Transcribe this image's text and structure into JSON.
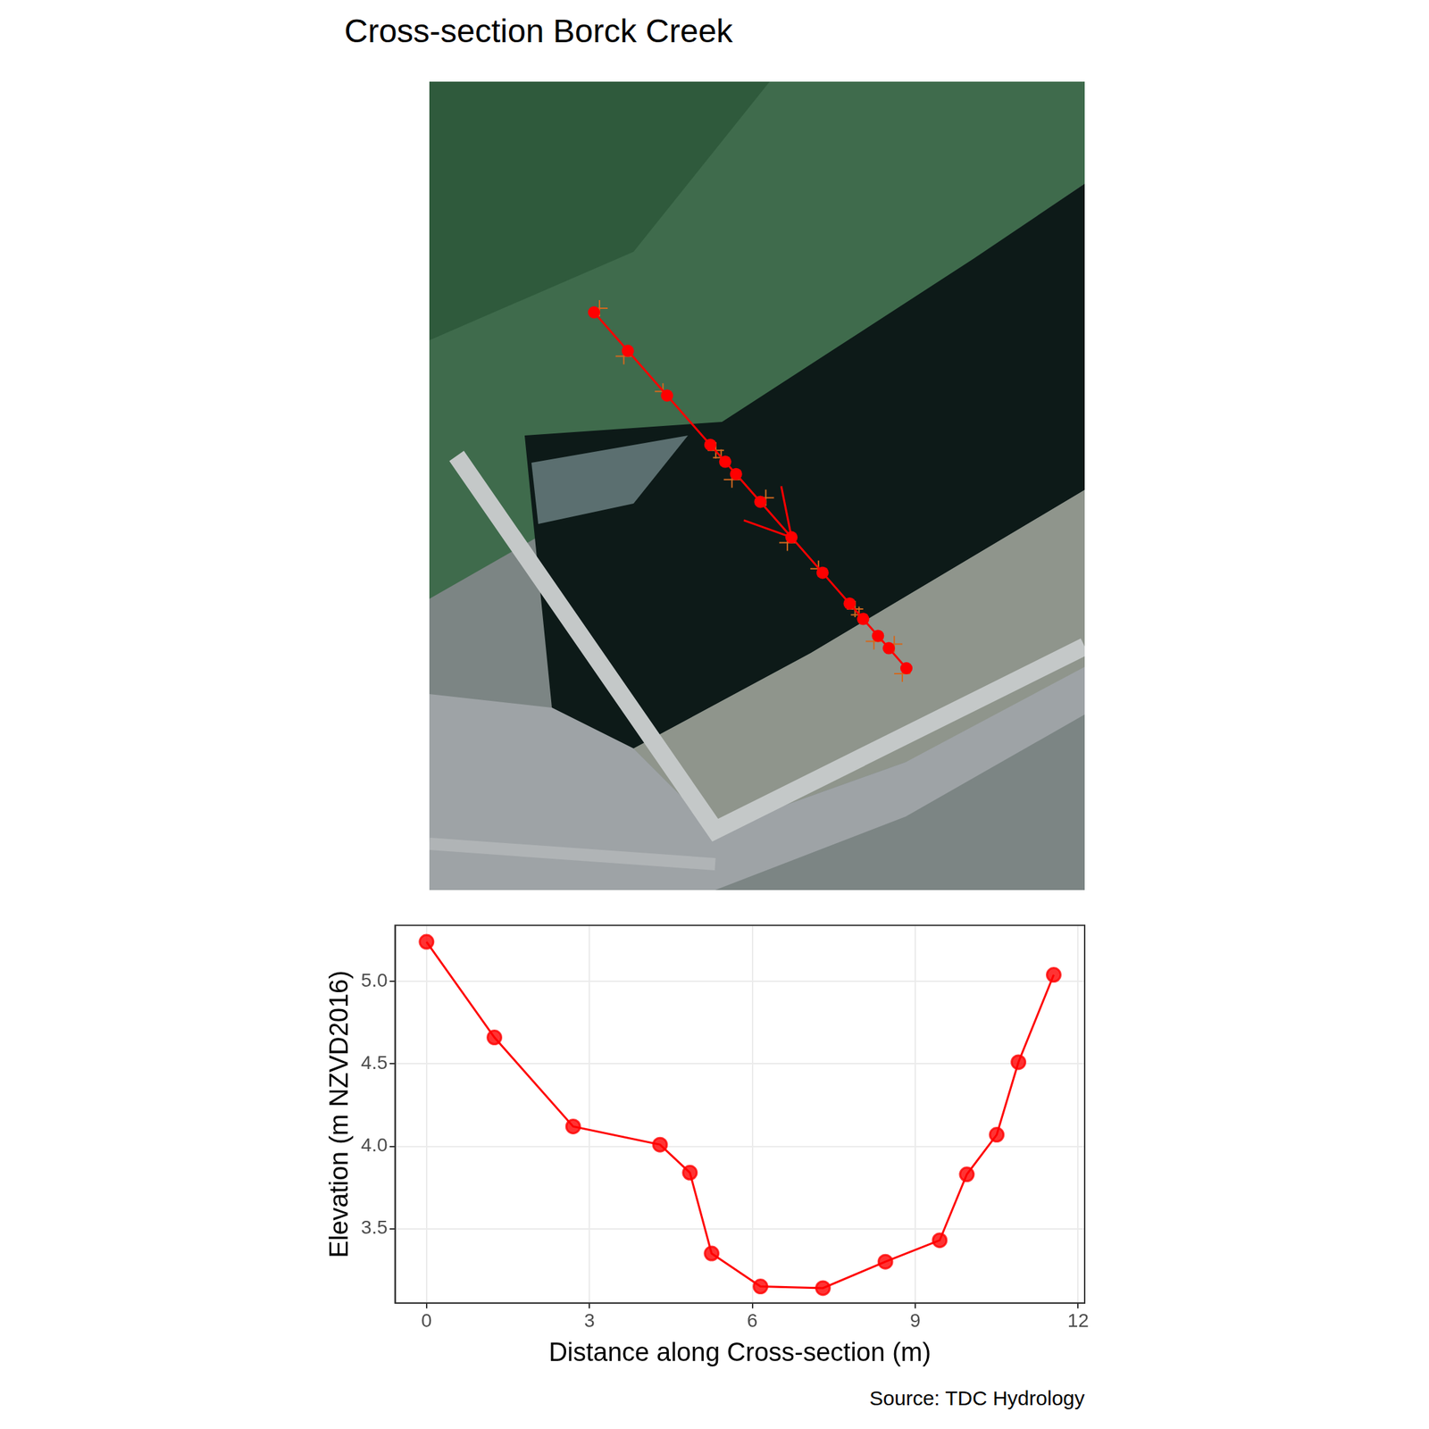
{
  "chart_data": {
    "type": "line",
    "title": "Cross-section Borck Creek",
    "x_label": "Distance along Cross-section (m)",
    "y_label": "Elevation (m NZVD2016)",
    "caption": "Source: TDC Hydrology",
    "x": [
      0,
      1.25,
      2.7,
      4.3,
      4.85,
      5.25,
      6.15,
      7.3,
      8.45,
      9.45,
      9.95,
      10.5,
      10.9,
      11.55
    ],
    "values": [
      5.24,
      4.66,
      4.12,
      4.01,
      3.84,
      3.35,
      3.15,
      3.14,
      3.3,
      3.43,
      3.83,
      4.07,
      4.51,
      5.04
    ],
    "color": "#ff0000",
    "marker": "circle",
    "line_style": "solid",
    "xlim": [
      -0.58,
      12.12
    ],
    "ylim": [
      3.05,
      5.34
    ],
    "xticks": [
      0,
      3,
      6,
      9,
      12
    ],
    "yticks": [
      3.5,
      {
        "value": 4,
        "label": "4.0"
      },
      4.5,
      {
        "value": 5,
        "label": "5.0"
      }
    ],
    "grid": true
  }
}
